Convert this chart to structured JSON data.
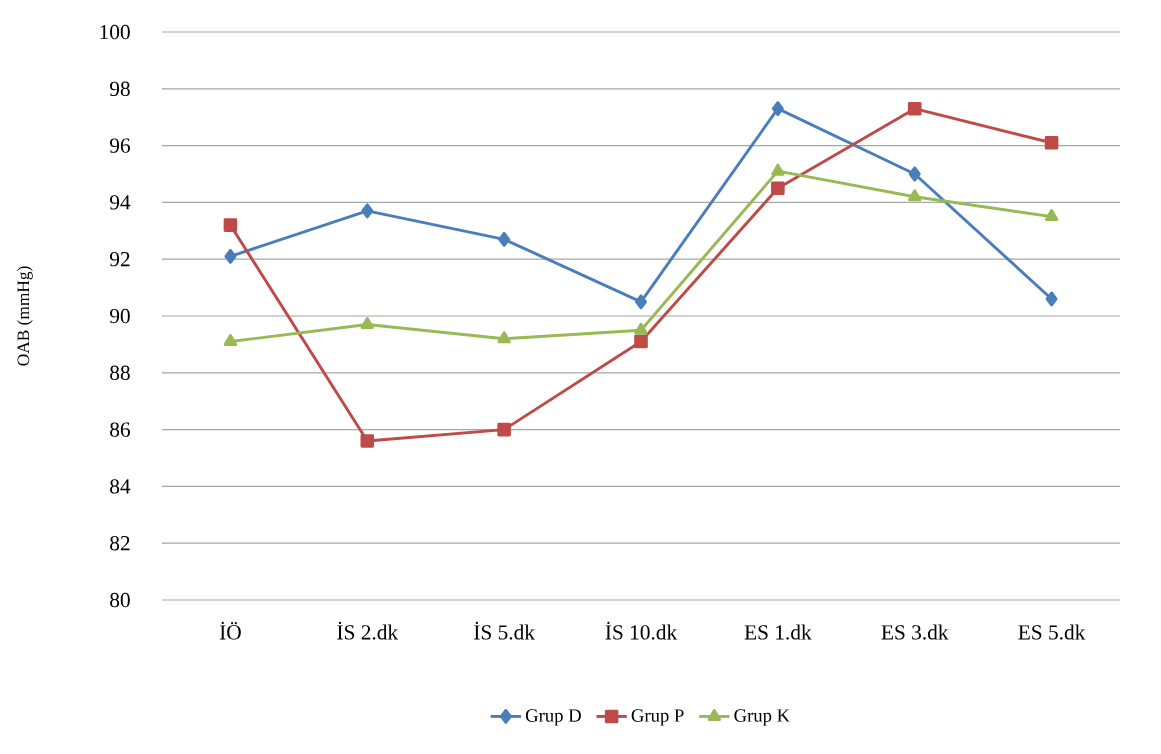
{
  "chart_data": {
    "type": "line",
    "ylabel": "OAB (mmHg)",
    "categories": [
      "İÖ",
      "İS 2.dk",
      "İS 5.dk",
      "İS 10.dk",
      "ES 1.dk",
      "ES 3.dk",
      "ES 5.dk"
    ],
    "series": [
      {
        "name": "Grup D",
        "color": "#4a7ebb",
        "marker": "diamond",
        "values": [
          92.1,
          93.7,
          92.7,
          90.5,
          97.3,
          95.0,
          90.6
        ]
      },
      {
        "name": "Grup P",
        "color": "#be4b48",
        "marker": "square",
        "values": [
          93.2,
          85.6,
          86.0,
          89.1,
          94.5,
          97.3,
          96.1
        ]
      },
      {
        "name": "Grup K",
        "color": "#98b954",
        "marker": "triangle",
        "values": [
          89.1,
          89.7,
          89.2,
          89.5,
          95.1,
          94.2,
          93.5
        ]
      }
    ],
    "ylim": [
      80,
      100
    ],
    "yticks": [
      80,
      82,
      84,
      86,
      88,
      90,
      92,
      94,
      96,
      98,
      100
    ],
    "grid": "y",
    "legend": "bottom",
    "line_style": "solid"
  }
}
